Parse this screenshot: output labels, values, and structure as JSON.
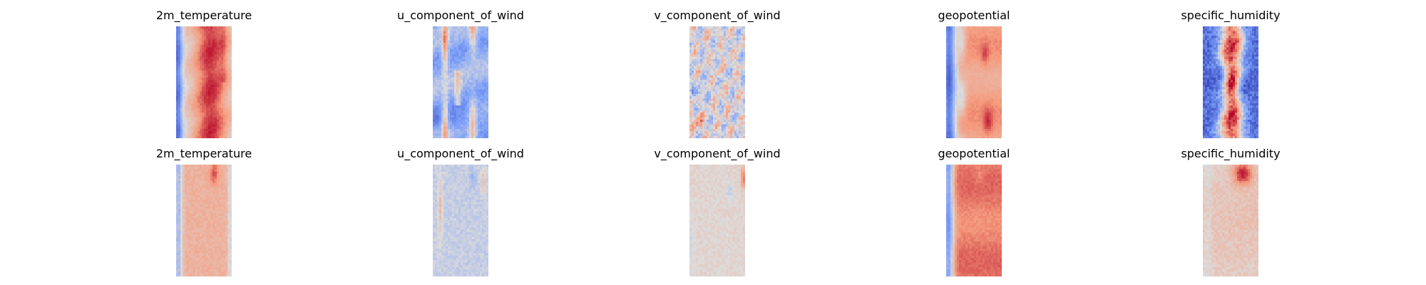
{
  "chart_data": {
    "type": "heatmap",
    "colormap": "coolwarm",
    "axes": "off",
    "grid": false,
    "legend": "none",
    "rows": [
      {
        "panels": [
          {
            "title": "2m_temperature",
            "pattern": "temp"
          },
          {
            "title": "u_component_of_wind",
            "pattern": "uwind"
          },
          {
            "title": "v_component_of_wind",
            "pattern": "vwind"
          },
          {
            "title": "geopotential",
            "pattern": "geo"
          },
          {
            "title": "specific_humidity",
            "pattern": "hum"
          }
        ]
      },
      {
        "panels": [
          {
            "title": "2m_temperature",
            "pattern": "temp_err"
          },
          {
            "title": "u_component_of_wind",
            "pattern": "uwind_err"
          },
          {
            "title": "v_component_of_wind",
            "pattern": "vwind_err"
          },
          {
            "title": "geopotential",
            "pattern": "geo_err"
          },
          {
            "title": "specific_humidity",
            "pattern": "hum_err"
          }
        ]
      }
    ]
  }
}
